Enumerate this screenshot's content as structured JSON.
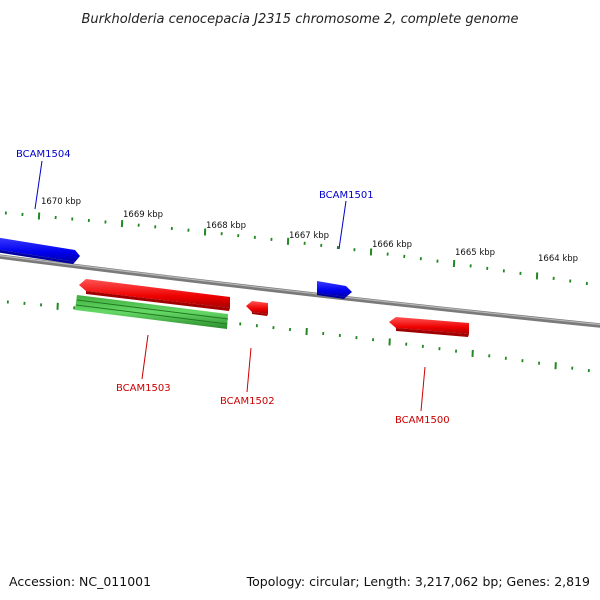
{
  "title": "Burkholderia cenocepacia J2315 chromosome 2, complete genome",
  "footer": {
    "accession": "Accession: NC_011001",
    "summary": "Topology: circular; Length: 3,217,062 bp; Genes: 2,819"
  },
  "colors": {
    "forward_gene": "#0000ff",
    "reverse_gene": "#ff0000",
    "rna_gene": "#22aa22",
    "backbone": "#888888",
    "ticks": "#228822"
  },
  "ruler": {
    "unit": "kbp",
    "labels": [
      {
        "kbp": 1670,
        "text": "1670 kbp"
      },
      {
        "kbp": 1669,
        "text": "1669 kbp"
      },
      {
        "kbp": 1668,
        "text": "1668 kbp"
      },
      {
        "kbp": 1667,
        "text": "1667 kbp"
      },
      {
        "kbp": 1666,
        "text": "1666 kbp"
      },
      {
        "kbp": 1665,
        "text": "1665 kbp"
      },
      {
        "kbp": 1664,
        "text": "1664 kbp"
      }
    ]
  },
  "genes": [
    {
      "id": "BCAM1504",
      "label": "BCAM1504",
      "strand": "forward"
    },
    {
      "id": "BCAM1501",
      "label": "BCAM1501",
      "strand": "forward"
    },
    {
      "id": "BCAM1503",
      "label": "BCAM1503",
      "strand": "reverse"
    },
    {
      "id": "BCAM1502",
      "label": "BCAM1502",
      "strand": "reverse"
    },
    {
      "id": "BCAM1500",
      "label": "BCAM1500",
      "strand": "reverse"
    },
    {
      "id": "rna-feature",
      "label": "",
      "strand": "reverse"
    }
  ]
}
